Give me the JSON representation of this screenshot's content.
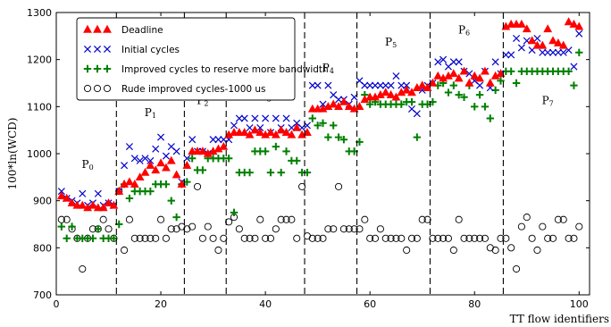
{
  "chart_data": {
    "type": "scatter",
    "title": "",
    "xlabel": "TT flow identifiers",
    "ylabel": "100*ln(WCD)",
    "xlim": [
      0,
      102
    ],
    "ylim": [
      700,
      1300
    ],
    "xticks": [
      0,
      20,
      40,
      60,
      80,
      100
    ],
    "yticks": [
      700,
      800,
      900,
      1000,
      1100,
      1200,
      1300
    ],
    "grid": false,
    "legend": "top-left",
    "phase_boundaries": [
      11.5,
      24.5,
      32.5,
      47.5,
      57.5,
      71.5,
      85.5
    ],
    "phases": [
      {
        "main": "P",
        "sub": "0",
        "x": 6,
        "y": 970
      },
      {
        "main": "P",
        "sub": "1",
        "x": 18,
        "y": 1080
      },
      {
        "main": "P",
        "sub": "2",
        "x": 28,
        "y": 1105
      },
      {
        "main": "P",
        "sub": "3",
        "x": 40,
        "y": 1115
      },
      {
        "main": "P",
        "sub": "4",
        "x": 52,
        "y": 1175
      },
      {
        "main": "P",
        "sub": "5",
        "x": 64,
        "y": 1230
      },
      {
        "main": "P",
        "sub": "6",
        "x": 78,
        "y": 1255
      },
      {
        "main": "P",
        "sub": "7",
        "x": 94,
        "y": 1105
      }
    ],
    "series": [
      {
        "name": "Deadline",
        "marker": "triangle",
        "color": "#ff0000",
        "values": [
          910,
          905,
          895,
          890,
          890,
          885,
          890,
          885,
          885,
          895,
          890,
          920,
          935,
          940,
          935,
          950,
          960,
          975,
          965,
          980,
          970,
          985,
          955,
          935,
          975,
          1005,
          1005,
          1005,
          1000,
          1005,
          1010,
          1015,
          1040,
          1045,
          1045,
          1045,
          1040,
          1050,
          1045,
          1040,
          1045,
          1040,
          1050,
          1045,
          1040,
          1055,
          1040,
          1045,
          1095,
          1095,
          1095,
          1100,
          1105,
          1100,
          1110,
          1100,
          1095,
          1100,
          1115,
          1120,
          1120,
          1125,
          1130,
          1125,
          1120,
          1130,
          1135,
          1130,
          1140,
          1145,
          1140,
          1150,
          1165,
          1160,
          1165,
          1170,
          1160,
          1175,
          1150,
          1165,
          1160,
          1175,
          1150,
          1165,
          1170,
          1270,
          1275,
          1275,
          1275,
          1265,
          1240,
          1230,
          1230,
          1265,
          1240,
          1235,
          1230,
          1280,
          1275,
          1270
        ]
      },
      {
        "name": "Initial cycles",
        "marker": "x",
        "color": "#0000cc",
        "values": [
          920,
          905,
          900,
          895,
          915,
          890,
          895,
          915,
          890,
          895,
          890,
          920,
          975,
          1015,
          990,
          985,
          990,
          985,
          1010,
          1035,
          995,
          1015,
          1005,
          940,
          990,
          1030,
          1005,
          1005,
          1000,
          1030,
          1030,
          1030,
          1030,
          1060,
          1075,
          1075,
          1055,
          1075,
          1055,
          1075,
          1045,
          1075,
          1055,
          1075,
          1055,
          1065,
          1055,
          1060,
          1145,
          1145,
          1105,
          1145,
          1125,
          1115,
          1115,
          1105,
          1120,
          1155,
          1145,
          1145,
          1145,
          1145,
          1145,
          1145,
          1165,
          1145,
          1145,
          1095,
          1085,
          1135,
          1145,
          1150,
          1195,
          1200,
          1185,
          1195,
          1195,
          1175,
          1170,
          1155,
          1145,
          1175,
          1140,
          1195,
          1170,
          1210,
          1210,
          1245,
          1225,
          1240,
          1220,
          1245,
          1215,
          1215,
          1215,
          1215,
          1215,
          1220,
          1185,
          1255
        ]
      },
      {
        "name": "Improved cycles to reserve more bandwidth",
        "marker": "plus",
        "color": "#008000",
        "values": [
          845,
          820,
          845,
          820,
          820,
          820,
          820,
          840,
          820,
          820,
          820,
          850,
          935,
          905,
          920,
          920,
          920,
          920,
          935,
          935,
          935,
          900,
          865,
          935,
          940,
          990,
          965,
          965,
          990,
          990,
          990,
          990,
          990,
          875,
          960,
          960,
          960,
          1005,
          1005,
          1005,
          960,
          1015,
          960,
          1005,
          985,
          985,
          960,
          960,
          1075,
          1060,
          1065,
          1035,
          1060,
          1035,
          1030,
          1005,
          1005,
          1025,
          1125,
          1105,
          1110,
          1105,
          1105,
          1105,
          1105,
          1105,
          1110,
          1110,
          1035,
          1105,
          1105,
          1110,
          1145,
          1150,
          1130,
          1145,
          1125,
          1120,
          1145,
          1100,
          1125,
          1100,
          1075,
          1135,
          1155,
          1175,
          1175,
          1150,
          1175,
          1175,
          1175,
          1175,
          1175,
          1175,
          1175,
          1175,
          1175,
          1175,
          1145,
          1215
        ]
      },
      {
        "name": "Rude improved cycles-1000 us",
        "marker": "circle",
        "color": "#000000",
        "values": [
          860,
          860,
          840,
          820,
          755,
          820,
          840,
          840,
          860,
          840,
          820,
          920,
          795,
          860,
          820,
          820,
          820,
          820,
          820,
          860,
          820,
          840,
          840,
          845,
          840,
          845,
          930,
          820,
          845,
          820,
          795,
          820,
          855,
          865,
          840,
          820,
          820,
          820,
          860,
          820,
          820,
          840,
          860,
          860,
          860,
          820,
          930,
          825,
          820,
          820,
          820,
          840,
          840,
          930,
          840,
          840,
          840,
          840,
          860,
          820,
          820,
          840,
          820,
          820,
          820,
          820,
          795,
          820,
          820,
          860,
          860,
          820,
          820,
          820,
          820,
          795,
          860,
          820,
          820,
          820,
          820,
          820,
          800,
          795,
          820,
          820,
          800,
          755,
          845,
          865,
          820,
          795,
          845,
          820,
          820,
          860,
          860,
          820,
          820,
          845
        ]
      }
    ]
  }
}
